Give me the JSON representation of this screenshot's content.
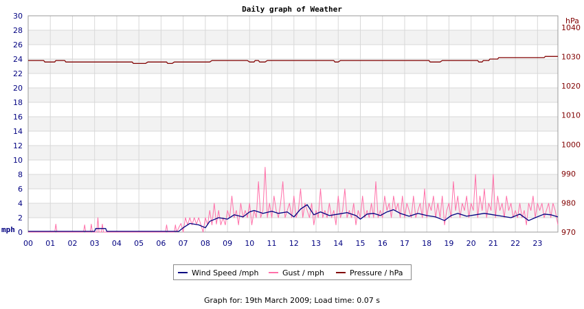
{
  "chart_data": {
    "type": "line",
    "title": "Daily graph of Weather",
    "left_axis": {
      "unit": "mph",
      "ticks": [
        "0",
        "2",
        "4",
        "6",
        "8",
        "10",
        "12",
        "14",
        "16",
        "18",
        "20",
        "22",
        "24",
        "26",
        "28",
        "30"
      ],
      "range": [
        0,
        30
      ],
      "color": "#000080"
    },
    "right_axis": {
      "unit": "hPa",
      "ticks": [
        "970",
        "980",
        "990",
        "1000",
        "1010",
        "1020",
        "1030",
        "1040"
      ],
      "range": [
        970,
        1044
      ],
      "color": "#800000"
    },
    "x_axis": {
      "ticks": [
        "00",
        "01",
        "02",
        "03",
        "04",
        "05",
        "06",
        "07",
        "08",
        "09",
        "10",
        "11",
        "12",
        "13",
        "14",
        "15",
        "16",
        "17",
        "18",
        "19",
        "20",
        "21",
        "22",
        "23"
      ],
      "range_hours": [
        0,
        23.92
      ]
    },
    "grid": true,
    "alternating_bands": true,
    "legend": {
      "placement": "bottom-center",
      "entries": [
        {
          "label": "Wind Speed /mph",
          "color": "#000080"
        },
        {
          "label": "Gust / mph",
          "color": "#ff6fa8"
        },
        {
          "label": "Pressure / hPa",
          "color": "#800000"
        }
      ]
    },
    "series": [
      {
        "name": "Pressure / hPa",
        "axis": "right",
        "color": "#800000",
        "points": [
          [
            0,
            1028.7
          ],
          [
            0.7,
            1028.7
          ],
          [
            0.75,
            1028.2
          ],
          [
            1.2,
            1028.2
          ],
          [
            1.25,
            1028.7
          ],
          [
            1.65,
            1028.7
          ],
          [
            1.7,
            1028.2
          ],
          [
            4.7,
            1028.2
          ],
          [
            4.75,
            1027.7
          ],
          [
            5.3,
            1027.7
          ],
          [
            5.4,
            1028.2
          ],
          [
            6.25,
            1028.2
          ],
          [
            6.3,
            1027.7
          ],
          [
            6.5,
            1027.7
          ],
          [
            6.6,
            1028.2
          ],
          [
            8.2,
            1028.2
          ],
          [
            8.3,
            1028.7
          ],
          [
            9.9,
            1028.7
          ],
          [
            10.0,
            1028.2
          ],
          [
            10.2,
            1028.2
          ],
          [
            10.25,
            1028.7
          ],
          [
            10.4,
            1028.7
          ],
          [
            10.45,
            1028.2
          ],
          [
            10.7,
            1028.2
          ],
          [
            10.8,
            1028.7
          ],
          [
            13.8,
            1028.7
          ],
          [
            13.85,
            1028.2
          ],
          [
            14.0,
            1028.2
          ],
          [
            14.1,
            1028.7
          ],
          [
            18.1,
            1028.7
          ],
          [
            18.15,
            1028.2
          ],
          [
            18.6,
            1028.2
          ],
          [
            18.7,
            1028.7
          ],
          [
            20.3,
            1028.7
          ],
          [
            20.35,
            1028.2
          ],
          [
            20.5,
            1028.2
          ],
          [
            20.55,
            1028.7
          ],
          [
            20.8,
            1028.7
          ],
          [
            20.85,
            1029.2
          ],
          [
            21.2,
            1029.2
          ],
          [
            21.25,
            1029.7
          ],
          [
            23.3,
            1029.7
          ],
          [
            23.35,
            1030.1
          ],
          [
            23.92,
            1030.1
          ]
        ]
      },
      {
        "name": "Wind Speed /mph",
        "axis": "left",
        "color": "#000080",
        "points": [
          [
            0,
            0.1
          ],
          [
            3.0,
            0.1
          ],
          [
            3.05,
            0.5
          ],
          [
            3.5,
            0.5
          ],
          [
            3.55,
            0.1
          ],
          [
            6.8,
            0.1
          ],
          [
            7.0,
            0.6
          ],
          [
            7.3,
            1.2
          ],
          [
            7.7,
            1.0
          ],
          [
            8.0,
            0.6
          ],
          [
            8.2,
            1.5
          ],
          [
            8.6,
            2.0
          ],
          [
            9.0,
            1.8
          ],
          [
            9.3,
            2.4
          ],
          [
            9.7,
            2.1
          ],
          [
            10.0,
            2.8
          ],
          [
            10.2,
            3.0
          ],
          [
            10.6,
            2.6
          ],
          [
            11.0,
            2.9
          ],
          [
            11.3,
            2.6
          ],
          [
            11.7,
            2.8
          ],
          [
            12.0,
            2.1
          ],
          [
            12.3,
            3.2
          ],
          [
            12.6,
            3.8
          ],
          [
            12.9,
            2.4
          ],
          [
            13.2,
            2.8
          ],
          [
            13.6,
            2.3
          ],
          [
            14.0,
            2.5
          ],
          [
            14.4,
            2.7
          ],
          [
            14.8,
            2.3
          ],
          [
            15.0,
            1.8
          ],
          [
            15.3,
            2.5
          ],
          [
            15.6,
            2.6
          ],
          [
            15.9,
            2.3
          ],
          [
            16.2,
            2.8
          ],
          [
            16.5,
            3.1
          ],
          [
            16.8,
            2.6
          ],
          [
            17.2,
            2.2
          ],
          [
            17.6,
            2.6
          ],
          [
            18.0,
            2.3
          ],
          [
            18.4,
            2.1
          ],
          [
            18.8,
            1.6
          ],
          [
            19.1,
            2.3
          ],
          [
            19.4,
            2.6
          ],
          [
            19.8,
            2.2
          ],
          [
            20.2,
            2.4
          ],
          [
            20.6,
            2.6
          ],
          [
            21.0,
            2.4
          ],
          [
            21.4,
            2.2
          ],
          [
            21.8,
            2.0
          ],
          [
            22.2,
            2.5
          ],
          [
            22.6,
            1.6
          ],
          [
            22.9,
            2.0
          ],
          [
            23.3,
            2.5
          ],
          [
            23.6,
            2.4
          ],
          [
            23.92,
            2.1
          ]
        ]
      },
      {
        "name": "Gust / mph",
        "axis": "left",
        "color": "#ff6fa8",
        "points": [
          [
            0,
            0
          ],
          [
            1.2,
            0
          ],
          [
            1.25,
            1.1
          ],
          [
            1.3,
            0
          ],
          [
            2.5,
            0
          ],
          [
            2.55,
            1.0
          ],
          [
            2.6,
            0
          ],
          [
            2.8,
            0
          ],
          [
            2.85,
            1.1
          ],
          [
            2.9,
            0
          ],
          [
            3.1,
            0
          ],
          [
            3.15,
            2.0
          ],
          [
            3.2,
            0
          ],
          [
            3.3,
            0
          ],
          [
            3.35,
            1.1
          ],
          [
            3.4,
            0
          ],
          [
            6.2,
            0
          ],
          [
            6.25,
            1.0
          ],
          [
            6.3,
            0
          ],
          [
            6.6,
            0
          ],
          [
            6.65,
            1.0
          ],
          [
            6.7,
            0
          ],
          [
            6.9,
            1.2
          ],
          [
            7.0,
            0
          ],
          [
            7.1,
            2.0
          ],
          [
            7.2,
            1.0
          ],
          [
            7.3,
            2.0
          ],
          [
            7.4,
            1.0
          ],
          [
            7.5,
            2.0
          ],
          [
            7.6,
            1.1
          ],
          [
            7.7,
            2.0
          ],
          [
            7.8,
            1.0
          ],
          [
            7.9,
            0
          ],
          [
            8.0,
            2.0
          ],
          [
            8.1,
            1.0
          ],
          [
            8.2,
            3.0
          ],
          [
            8.3,
            1.0
          ],
          [
            8.4,
            4.0
          ],
          [
            8.5,
            1.1
          ],
          [
            8.6,
            3.0
          ],
          [
            8.7,
            1.0
          ],
          [
            8.8,
            2.0
          ],
          [
            8.9,
            1.0
          ],
          [
            9.0,
            3.0
          ],
          [
            9.1,
            2.0
          ],
          [
            9.2,
            5.0
          ],
          [
            9.3,
            2.0
          ],
          [
            9.4,
            3.0
          ],
          [
            9.5,
            1.0
          ],
          [
            9.6,
            4.0
          ],
          [
            9.7,
            2.0
          ],
          [
            9.8,
            3.0
          ],
          [
            9.9,
            2.0
          ],
          [
            10.0,
            4.0
          ],
          [
            10.1,
            1.0
          ],
          [
            10.2,
            3.0
          ],
          [
            10.3,
            2.0
          ],
          [
            10.4,
            7.0
          ],
          [
            10.5,
            2.0
          ],
          [
            10.6,
            3.0
          ],
          [
            10.7,
            9.0
          ],
          [
            10.8,
            2.0
          ],
          [
            10.9,
            4.0
          ],
          [
            11.0,
            2.0
          ],
          [
            11.1,
            5.0
          ],
          [
            11.2,
            3.0
          ],
          [
            11.3,
            2.0
          ],
          [
            11.4,
            4.0
          ],
          [
            11.5,
            7.0
          ],
          [
            11.6,
            2.0
          ],
          [
            11.7,
            3.0
          ],
          [
            11.8,
            4.0
          ],
          [
            11.9,
            2.0
          ],
          [
            12.0,
            5.0
          ],
          [
            12.1,
            2.0
          ],
          [
            12.2,
            3.0
          ],
          [
            12.3,
            6.0
          ],
          [
            12.4,
            2.0
          ],
          [
            12.5,
            4.0
          ],
          [
            12.6,
            3.0
          ],
          [
            12.7,
            2.0
          ],
          [
            12.8,
            4.0
          ],
          [
            12.9,
            1.0
          ],
          [
            13.0,
            3.0
          ],
          [
            13.1,
            2.0
          ],
          [
            13.2,
            6.0
          ],
          [
            13.3,
            2.0
          ],
          [
            13.4,
            3.0
          ],
          [
            13.5,
            2.0
          ],
          [
            13.6,
            4.0
          ],
          [
            13.7,
            2.0
          ],
          [
            13.8,
            3.0
          ],
          [
            13.9,
            1.0
          ],
          [
            14.0,
            5.0
          ],
          [
            14.1,
            2.0
          ],
          [
            14.2,
            3.0
          ],
          [
            14.3,
            6.0
          ],
          [
            14.4,
            2.0
          ],
          [
            14.5,
            3.0
          ],
          [
            14.6,
            2.0
          ],
          [
            14.7,
            4.0
          ],
          [
            14.8,
            1.0
          ],
          [
            14.9,
            3.0
          ],
          [
            15.0,
            2.0
          ],
          [
            15.1,
            5.0
          ],
          [
            15.2,
            2.0
          ],
          [
            15.3,
            3.0
          ],
          [
            15.4,
            2.0
          ],
          [
            15.5,
            4.0
          ],
          [
            15.6,
            2.0
          ],
          [
            15.7,
            7.0
          ],
          [
            15.8,
            2.0
          ],
          [
            15.9,
            3.0
          ],
          [
            16.0,
            2.0
          ],
          [
            16.1,
            5.0
          ],
          [
            16.2,
            3.0
          ],
          [
            16.3,
            4.0
          ],
          [
            16.4,
            2.0
          ],
          [
            16.5,
            5.0
          ],
          [
            16.6,
            3.0
          ],
          [
            16.7,
            4.0
          ],
          [
            16.8,
            2.0
          ],
          [
            16.9,
            5.0
          ],
          [
            17.0,
            2.0
          ],
          [
            17.1,
            4.0
          ],
          [
            17.2,
            3.0
          ],
          [
            17.3,
            2.0
          ],
          [
            17.4,
            5.0
          ],
          [
            17.5,
            2.0
          ],
          [
            17.6,
            3.0
          ],
          [
            17.7,
            4.0
          ],
          [
            17.8,
            2.0
          ],
          [
            17.9,
            6.0
          ],
          [
            18.0,
            2.0
          ],
          [
            18.1,
            4.0
          ],
          [
            18.2,
            3.0
          ],
          [
            18.3,
            5.0
          ],
          [
            18.4,
            2.0
          ],
          [
            18.5,
            4.0
          ],
          [
            18.6,
            2.0
          ],
          [
            18.7,
            5.0
          ],
          [
            18.8,
            1.0
          ],
          [
            18.9,
            3.0
          ],
          [
            19.0,
            4.0
          ],
          [
            19.1,
            2.0
          ],
          [
            19.2,
            7.0
          ],
          [
            19.3,
            3.0
          ],
          [
            19.4,
            5.0
          ],
          [
            19.5,
            2.0
          ],
          [
            19.6,
            4.0
          ],
          [
            19.7,
            3.0
          ],
          [
            19.8,
            5.0
          ],
          [
            19.9,
            2.0
          ],
          [
            20.0,
            4.0
          ],
          [
            20.1,
            3.0
          ],
          [
            20.2,
            8.0
          ],
          [
            20.3,
            2.0
          ],
          [
            20.4,
            5.0
          ],
          [
            20.5,
            3.0
          ],
          [
            20.6,
            6.0
          ],
          [
            20.7,
            2.0
          ],
          [
            20.8,
            4.0
          ],
          [
            20.9,
            3.0
          ],
          [
            21.0,
            8.0
          ],
          [
            21.1,
            2.0
          ],
          [
            21.2,
            5.0
          ],
          [
            21.3,
            3.0
          ],
          [
            21.4,
            4.0
          ],
          [
            21.5,
            2.0
          ],
          [
            21.6,
            5.0
          ],
          [
            21.7,
            3.0
          ],
          [
            21.8,
            4.0
          ],
          [
            21.9,
            2.0
          ],
          [
            22.0,
            3.0
          ],
          [
            22.1,
            2.0
          ],
          [
            22.2,
            4.0
          ],
          [
            22.3,
            2.0
          ],
          [
            22.4,
            3.0
          ],
          [
            22.5,
            1.0
          ],
          [
            22.6,
            4.0
          ],
          [
            22.7,
            3.0
          ],
          [
            22.8,
            5.0
          ],
          [
            22.9,
            2.0
          ],
          [
            23.0,
            4.0
          ],
          [
            23.1,
            3.0
          ],
          [
            23.2,
            4.0
          ],
          [
            23.3,
            2.0
          ],
          [
            23.4,
            3.0
          ],
          [
            23.5,
            4.0
          ],
          [
            23.6,
            2.0
          ],
          [
            23.7,
            4.0
          ],
          [
            23.8,
            3.0
          ],
          [
            23.92,
            1.0
          ]
        ]
      }
    ]
  },
  "legend": {
    "wind_label": "Wind Speed /mph",
    "gust_label": "Gust / mph",
    "pressure_label": "Pressure / hPa"
  },
  "footer": {
    "text": "Graph for: 19th March 2009; Load time: 0.07 s"
  }
}
